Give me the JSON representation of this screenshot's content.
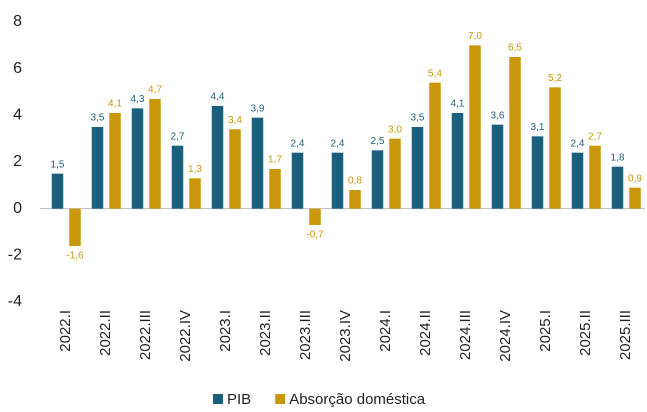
{
  "chart_data": {
    "type": "bar",
    "categories": [
      "2022.I",
      "2022.II",
      "2022.III",
      "2022.IV",
      "2023.I",
      "2023.II",
      "2023.III",
      "2023.IV",
      "2024.I",
      "2024.II",
      "2024.III",
      "2024.IV",
      "2025.I",
      "2025.II",
      "2025.III"
    ],
    "series": [
      {
        "name": "PIB",
        "color": "#1b5f7e",
        "values": [
          1.5,
          3.5,
          4.3,
          2.7,
          4.4,
          3.9,
          2.4,
          2.4,
          2.5,
          3.5,
          4.1,
          3.6,
          3.1,
          2.4,
          1.8
        ],
        "value_labels": [
          "1,5",
          "3,5",
          "4,3",
          "2,7",
          "4,4",
          "3,9",
          "2,4",
          "2,4",
          "2,5",
          "3,5",
          "4,1",
          "3,6",
          "3,1",
          "2,4",
          "1,8"
        ]
      },
      {
        "name": "Absorção doméstica",
        "color": "#c9960c",
        "values": [
          -1.6,
          4.1,
          4.7,
          1.3,
          3.4,
          1.7,
          -0.7,
          0.8,
          3.0,
          5.4,
          7.0,
          6.5,
          5.2,
          2.7,
          0.9
        ],
        "value_labels": [
          "-1,6",
          "4,1",
          "4,7",
          "1,3",
          "3,4",
          "1,7",
          "-0,7",
          "0,8",
          "3,0",
          "5,4",
          "7,0",
          "6,5",
          "5,2",
          "2,7",
          "0,9"
        ]
      }
    ],
    "ylim": [
      -4,
      8
    ],
    "yticks": [
      -4,
      -2,
      0,
      2,
      4,
      6,
      8
    ],
    "grid": false,
    "legend": "bottom"
  }
}
